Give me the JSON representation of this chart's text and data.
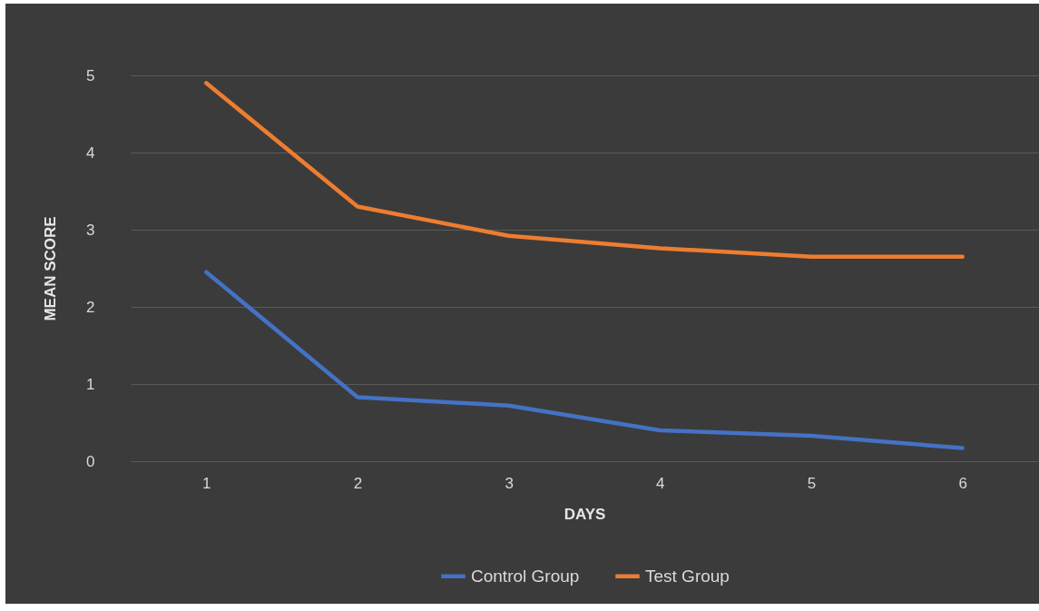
{
  "chart_data": {
    "type": "line",
    "xlabel": "DAYS",
    "ylabel": "MEAN SCORE",
    "categories": [
      "1",
      "2",
      "3",
      "4",
      "5",
      "6"
    ],
    "series": [
      {
        "name": "Control Group",
        "color": "#4472c4",
        "values": [
          2.45,
          0.83,
          0.72,
          0.4,
          0.33,
          0.17
        ]
      },
      {
        "name": "Test Group",
        "color": "#ed7d31",
        "values": [
          4.9,
          3.3,
          2.92,
          2.76,
          2.65,
          2.65
        ]
      }
    ],
    "ylim": [
      0,
      5
    ],
    "yticks": [
      0,
      1,
      2,
      3,
      4,
      5
    ],
    "grid": "y",
    "legend": "bottom"
  }
}
